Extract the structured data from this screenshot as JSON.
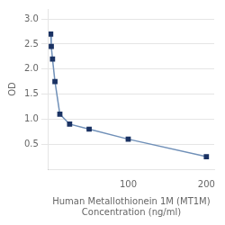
{
  "chart_data": {
    "type": "line",
    "xlabel": "Human Metallothionein 1M (MT1M)\nConcentration (ng/ml)",
    "ylabel": "OD",
    "x": [
      0.78,
      1.56,
      3.125,
      6.25,
      12.5,
      25,
      50,
      100,
      200
    ],
    "values": [
      2.7,
      2.45,
      2.2,
      1.75,
      1.1,
      0.9,
      0.8,
      0.6,
      0.25
    ],
    "color": "#7090b8",
    "colors": [
      "#1a3263",
      "#1a3263",
      "#1a3263",
      "#1a3263",
      "#1a3263",
      "#1a3263",
      "#1a3263",
      "#1a3263",
      "#1a3263"
    ],
    "marker": "square",
    "xlim": [
      -2,
      210
    ],
    "xticks": [
      100,
      200
    ],
    "ylim": [
      0,
      3.2
    ],
    "yticks": [
      0.5,
      {
        "value": 1.0,
        "label": "1.0"
      },
      1.5,
      {
        "value": 2.0,
        "label": "2.0"
      },
      2.5,
      {
        "value": 3.0,
        "label": "3.0"
      }
    ],
    "grid": "y"
  }
}
